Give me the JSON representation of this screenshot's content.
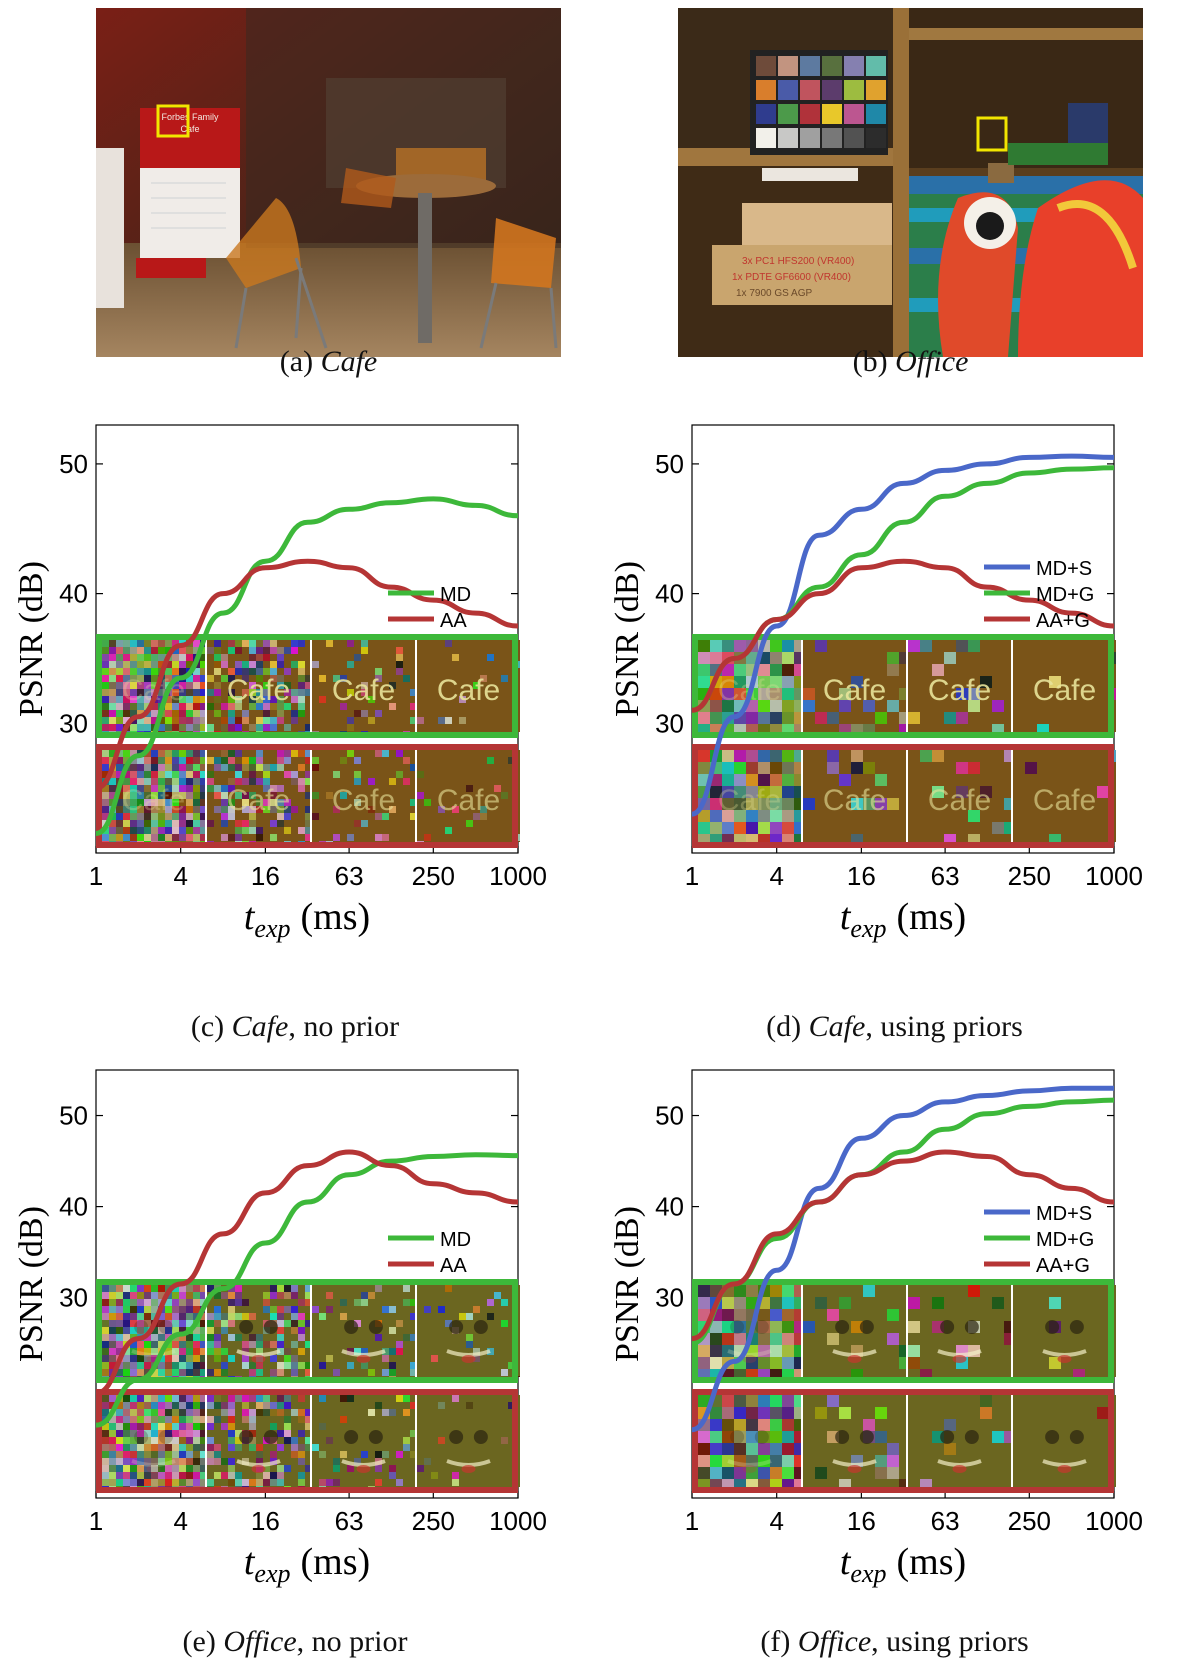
{
  "photos": {
    "cafe": {
      "sign_lines": [
        "Forbes Family",
        "Cafe"
      ]
    },
    "office": {
      "box_texts": [
        "3x PC1  HFS200 (VR400)",
        "1x PDTE  GF6600 (VR400)",
        "1x 7900 GS  AGP"
      ]
    }
  },
  "captions": {
    "a": {
      "label": "(a) ",
      "name": "Cafe",
      "rest": ""
    },
    "b": {
      "label": "(b) ",
      "name": "Office",
      "rest": ""
    },
    "c": {
      "label": "(c) ",
      "name": "Cafe",
      "rest": ", no prior"
    },
    "d": {
      "label": "(d) ",
      "name": "Cafe",
      "rest": ", using priors"
    },
    "e": {
      "label": "(e) ",
      "name": "Office",
      "rest": ", no prior"
    },
    "f": {
      "label": "(f) ",
      "name": "Office",
      "rest": ", using priors"
    }
  },
  "colors": {
    "MD+S": "#4a68c9",
    "MD": "#3db83a",
    "MD+G": "#3db83a",
    "AA": "#b53535",
    "AA+G": "#b53535",
    "highlight": "#f2e600"
  },
  "chart_data": [
    {
      "id": "c",
      "type": "line",
      "ylabel": "PSNR (dB)",
      "xlabel_main": "t",
      "xlabel_sub": "exp",
      "xlabel_unit": "(ms)",
      "x_scale": "log",
      "xlim": [
        1,
        1000
      ],
      "ylim": [
        20,
        53
      ],
      "xticks": [
        1,
        4,
        16,
        63,
        250,
        1000
      ],
      "xticklabels": [
        "1",
        "4",
        "16",
        "63",
        "250",
        "1000"
      ],
      "yticks": [
        30,
        40,
        50
      ],
      "yticklabels": [
        "30",
        "40",
        "50"
      ],
      "legend_position": "right",
      "grid": false,
      "inset": {
        "thumb_text": "Cafe",
        "noise": "dense"
      },
      "series": [
        {
          "name": "MD",
          "color": "#3db83a",
          "x": [
            1,
            2,
            4,
            8,
            16,
            32,
            63,
            125,
            250,
            500,
            1000
          ],
          "y": [
            21.5,
            27.5,
            33.5,
            38.5,
            42.5,
            45.5,
            46.5,
            47,
            47.3,
            46.8,
            46
          ]
        },
        {
          "name": "AA",
          "color": "#b53535",
          "x": [
            1,
            2,
            4,
            8,
            16,
            32,
            63,
            125,
            250,
            500,
            1000
          ],
          "y": [
            25,
            30.5,
            36,
            40,
            42,
            42.5,
            42,
            40.5,
            39.5,
            38.5,
            37.5
          ]
        }
      ]
    },
    {
      "id": "d",
      "type": "line",
      "ylabel": "PSNR (dB)",
      "xlabel_main": "t",
      "xlabel_sub": "exp",
      "xlabel_unit": "(ms)",
      "x_scale": "log",
      "xlim": [
        1,
        1000
      ],
      "ylim": [
        20,
        53
      ],
      "xticks": [
        1,
        4,
        16,
        63,
        250,
        1000
      ],
      "xticklabels": [
        "1",
        "4",
        "16",
        "63",
        "250",
        "1000"
      ],
      "yticks": [
        30,
        40,
        50
      ],
      "yticklabels": [
        "30",
        "40",
        "50"
      ],
      "legend_position": "right",
      "grid": false,
      "inset": {
        "thumb_text": "Cafe",
        "noise": "soft"
      },
      "series": [
        {
          "name": "MD+S",
          "color": "#4a68c9",
          "x": [
            1,
            2,
            4,
            8,
            16,
            32,
            63,
            125,
            250,
            500,
            1000
          ],
          "y": [
            23,
            30.5,
            37.5,
            44.5,
            46.5,
            48.5,
            49.5,
            50,
            50.5,
            50.6,
            50.5
          ]
        },
        {
          "name": "MD+G",
          "color": "#3db83a",
          "x": [
            1,
            2,
            4,
            8,
            16,
            32,
            63,
            125,
            250,
            500,
            1000
          ],
          "y": [
            31,
            35,
            38,
            40.5,
            43,
            45.5,
            47.5,
            48.5,
            49.3,
            49.6,
            49.7
          ]
        },
        {
          "name": "AA+G",
          "color": "#b53535",
          "x": [
            1,
            2,
            4,
            8,
            16,
            32,
            63,
            125,
            250,
            500,
            1000
          ],
          "y": [
            31,
            35,
            38,
            40,
            42,
            42.5,
            42,
            40.5,
            39.5,
            38.5,
            37.5
          ]
        }
      ]
    },
    {
      "id": "e",
      "type": "line",
      "ylabel": "PSNR (dB)",
      "xlabel_main": "t",
      "xlabel_sub": "exp",
      "xlabel_unit": "(ms)",
      "x_scale": "log",
      "xlim": [
        1,
        1000
      ],
      "ylim": [
        8,
        55
      ],
      "xticks": [
        1,
        4,
        16,
        63,
        250,
        1000
      ],
      "xticklabels": [
        "1",
        "4",
        "16",
        "63",
        "250",
        "1000"
      ],
      "yticks": [
        30,
        40,
        50
      ],
      "yticklabels": [
        "30",
        "40",
        "50"
      ],
      "legend_position": "right",
      "grid": false,
      "inset": {
        "thumb_text": "",
        "noise": "dense"
      },
      "series": [
        {
          "name": "MD",
          "color": "#3db83a",
          "x": [
            1,
            2,
            4,
            8,
            16,
            32,
            63,
            125,
            250,
            500,
            1000
          ],
          "y": [
            16,
            21,
            26,
            31,
            36,
            40.5,
            43.5,
            45,
            45.5,
            45.7,
            45.6
          ]
        },
        {
          "name": "AA",
          "color": "#b53535",
          "x": [
            1,
            2,
            4,
            8,
            16,
            32,
            63,
            125,
            250,
            500,
            1000
          ],
          "y": [
            19.5,
            25.5,
            31.5,
            37,
            41.5,
            44.5,
            46,
            44.5,
            42.5,
            41.5,
            40.5
          ]
        }
      ]
    },
    {
      "id": "f",
      "type": "line",
      "ylabel": "PSNR (dB)",
      "xlabel_main": "t",
      "xlabel_sub": "exp",
      "xlabel_unit": "(ms)",
      "x_scale": "log",
      "xlim": [
        1,
        1000
      ],
      "ylim": [
        8,
        55
      ],
      "xticks": [
        1,
        4,
        16,
        63,
        250,
        1000
      ],
      "xticklabels": [
        "1",
        "4",
        "16",
        "63",
        "250",
        "1000"
      ],
      "yticks": [
        30,
        40,
        50
      ],
      "yticklabels": [
        "30",
        "40",
        "50"
      ],
      "legend_position": "right",
      "grid": false,
      "inset": {
        "thumb_text": "",
        "noise": "soft"
      },
      "series": [
        {
          "name": "MD+S",
          "color": "#4a68c9",
          "x": [
            1,
            2,
            4,
            8,
            16,
            32,
            63,
            125,
            250,
            500,
            1000
          ],
          "y": [
            15.5,
            23,
            33,
            42,
            47.5,
            50,
            51.5,
            52.2,
            52.7,
            53,
            53
          ]
        },
        {
          "name": "MD+G",
          "color": "#3db83a",
          "x": [
            1,
            2,
            4,
            8,
            16,
            32,
            63,
            125,
            250,
            500,
            1000
          ],
          "y": [
            25,
            31.5,
            36.5,
            40.5,
            43.5,
            46,
            48.5,
            50.2,
            51,
            51.5,
            51.7
          ]
        },
        {
          "name": "AA+G",
          "color": "#b53535",
          "x": [
            1,
            2,
            4,
            8,
            16,
            32,
            63,
            125,
            250,
            500,
            1000
          ],
          "y": [
            25.5,
            31.5,
            37,
            40.5,
            43.5,
            45,
            46,
            45.5,
            43.5,
            42,
            40.5
          ]
        }
      ]
    }
  ]
}
